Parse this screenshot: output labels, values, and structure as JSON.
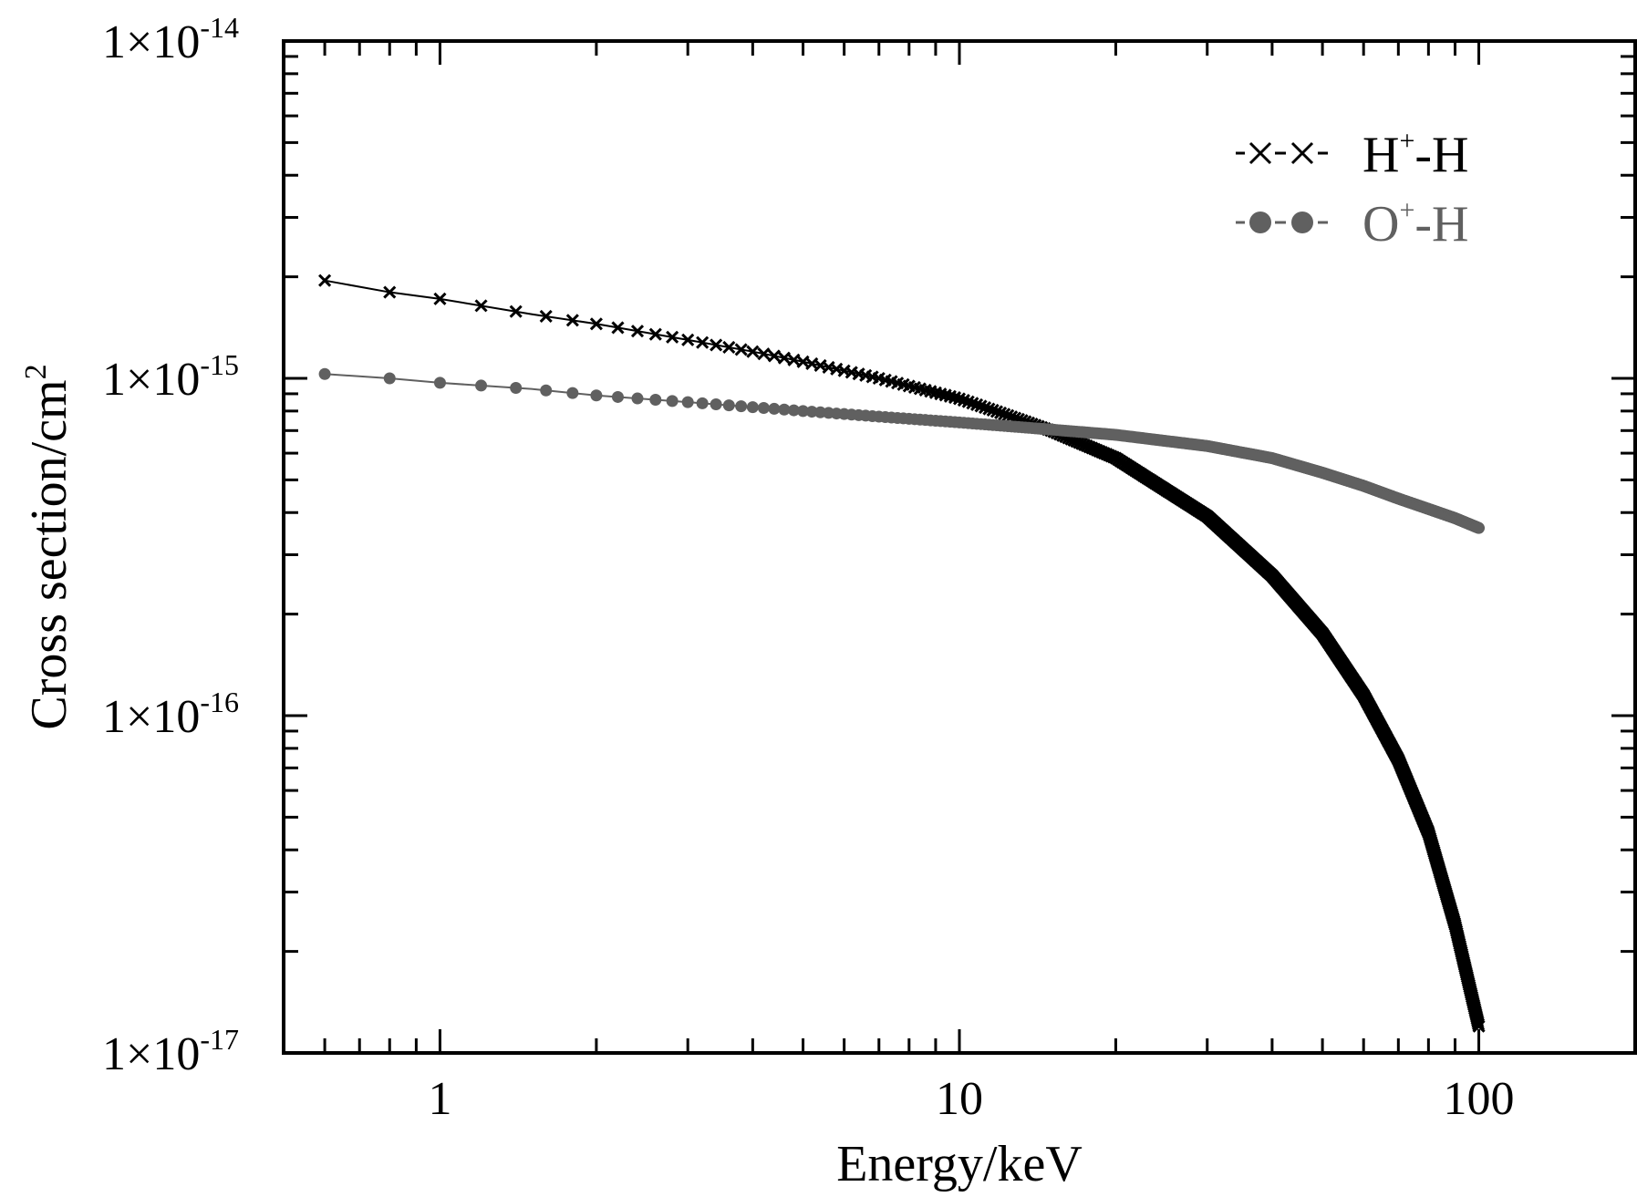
{
  "chart_data": {
    "type": "line",
    "xlabel": "Energy/keV",
    "ylabel": "Cross section/cm",
    "ylabel_sup": "2",
    "xscale": "log",
    "yscale": "log",
    "xlim": [
      0.5,
      200
    ],
    "ylim": [
      1e-17,
      1e-14
    ],
    "x_tick_labels": [
      {
        "value": 1,
        "label": "1"
      },
      {
        "value": 10,
        "label": "10"
      },
      {
        "value": 100,
        "label": "100"
      }
    ],
    "y_tick_labels": [
      {
        "value": 1e-17,
        "base": "1×10",
        "exp": "-17"
      },
      {
        "value": 1e-16,
        "base": "1×10",
        "exp": "-16"
      },
      {
        "value": 1e-15,
        "base": "1×10",
        "exp": "-15"
      },
      {
        "value": 1e-14,
        "base": "1×10",
        "exp": "-14"
      }
    ],
    "grid": false,
    "legend_position": "top-right",
    "x_range": [
      0.6,
      100
    ],
    "series": [
      {
        "name_main": "H",
        "name_sup": "+",
        "name_tail": "-H",
        "marker": "x",
        "color": "#000000",
        "x": [
          0.6,
          0.8,
          1,
          1.5,
          2,
          3,
          4,
          5,
          7,
          10,
          12,
          15,
          20,
          30,
          40,
          50,
          60,
          70,
          80,
          90,
          100
        ],
        "y": [
          1.95e-15,
          1.8e-15,
          1.72e-15,
          1.55e-15,
          1.45e-15,
          1.3e-15,
          1.2e-15,
          1.12e-15,
          1e-15,
          8.7e-16,
          7.9e-16,
          7e-16,
          5.8e-16,
          3.9e-16,
          2.6e-16,
          1.75e-16,
          1.15e-16,
          7.4e-17,
          4.5e-17,
          2.4e-17,
          1.2e-17
        ]
      },
      {
        "name_main": "O",
        "name_sup": "+",
        "name_tail": "-H",
        "marker": "circle",
        "color": "#606060",
        "x": [
          0.6,
          0.8,
          1,
          1.5,
          2,
          3,
          5,
          7,
          10,
          15,
          20,
          30,
          40,
          50,
          60,
          70,
          80,
          90,
          100
        ],
        "y": [
          1.03e-15,
          1e-15,
          9.7e-16,
          9.3e-16,
          8.9e-16,
          8.5e-16,
          8e-16,
          7.7e-16,
          7.4e-16,
          7.05e-16,
          6.8e-16,
          6.3e-16,
          5.8e-16,
          5.25e-16,
          4.8e-16,
          4.4e-16,
          4.1e-16,
          3.85e-16,
          3.6e-16
        ]
      }
    ]
  }
}
